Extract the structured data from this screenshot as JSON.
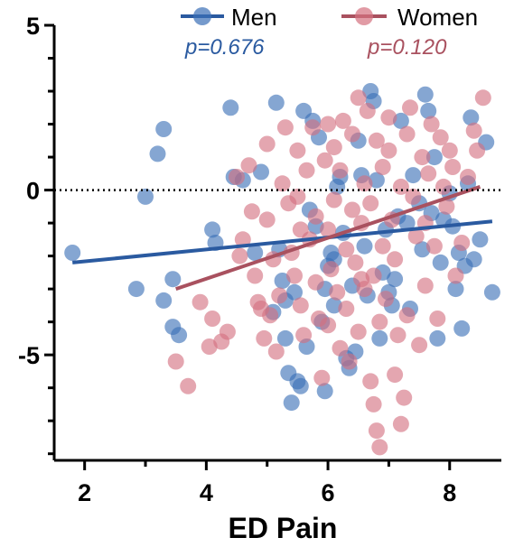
{
  "chart_data": {
    "type": "scatter",
    "title": "",
    "xlabel": "ED Pain",
    "ylabel": "",
    "xlim": [
      1.5,
      8.85
    ],
    "ylim": [
      -8.2,
      5.0
    ],
    "xticks": [
      2,
      4,
      6,
      8
    ],
    "xtick_labels": [
      "2",
      "4",
      "6",
      "8"
    ],
    "yticks": [
      5,
      0,
      -5
    ],
    "ytick_labels": [
      "5",
      "0",
      "-5"
    ],
    "reference_line": {
      "y": 0,
      "style": "dotted"
    },
    "legend_position": "top",
    "series": [
      {
        "name": "Men",
        "color": "#3a6fb6",
        "line_color": "#2a5aa0",
        "p_label": "p=0.676",
        "trend": {
          "x": [
            1.8,
            8.7
          ],
          "y": [
            -2.2,
            -0.95
          ]
        },
        "points": [
          [
            1.8,
            -1.9
          ],
          [
            2.85,
            -3.0
          ],
          [
            3.0,
            -0.2
          ],
          [
            3.2,
            1.1
          ],
          [
            3.3,
            1.85
          ],
          [
            3.3,
            -3.35
          ],
          [
            3.45,
            -2.7
          ],
          [
            3.45,
            -4.15
          ],
          [
            3.55,
            -4.4
          ],
          [
            4.1,
            -1.2
          ],
          [
            4.15,
            -1.6
          ],
          [
            4.4,
            2.5
          ],
          [
            4.45,
            0.4
          ],
          [
            4.6,
            0.3
          ],
          [
            4.9,
            0.55
          ],
          [
            4.8,
            -1.9
          ],
          [
            5.1,
            -3.7
          ],
          [
            5.15,
            2.65
          ],
          [
            5.2,
            -1.8
          ],
          [
            5.25,
            -2.75
          ],
          [
            5.3,
            -3.35
          ],
          [
            5.3,
            -4.5
          ],
          [
            5.35,
            -5.55
          ],
          [
            5.4,
            -6.45
          ],
          [
            5.45,
            -3.1
          ],
          [
            5.5,
            -5.8
          ],
          [
            5.55,
            -5.95
          ],
          [
            5.6,
            2.4
          ],
          [
            5.65,
            -4.75
          ],
          [
            5.7,
            -0.6
          ],
          [
            5.75,
            2.1
          ],
          [
            5.8,
            -1.1
          ],
          [
            5.85,
            1.6
          ],
          [
            5.9,
            -4.0
          ],
          [
            5.95,
            -3.0
          ],
          [
            5.95,
            -6.1
          ],
          [
            6.0,
            -2.3
          ],
          [
            6.05,
            -1.9
          ],
          [
            6.1,
            -3.5
          ],
          [
            6.1,
            -2.1
          ],
          [
            6.15,
            0.1
          ],
          [
            6.2,
            0.4
          ],
          [
            6.25,
            -1.3
          ],
          [
            6.3,
            -5.1
          ],
          [
            6.35,
            -5.4
          ],
          [
            6.4,
            -2.9
          ],
          [
            6.45,
            -4.9
          ],
          [
            6.5,
            1.5
          ],
          [
            6.55,
            0.45
          ],
          [
            6.6,
            -1.7
          ],
          [
            6.65,
            -3.2
          ],
          [
            6.7,
            3.0
          ],
          [
            6.75,
            2.7
          ],
          [
            6.8,
            0.3
          ],
          [
            6.85,
            -4.5
          ],
          [
            6.9,
            -2.5
          ],
          [
            6.95,
            -1.2
          ],
          [
            7.0,
            -3.1
          ],
          [
            7.05,
            -3.5
          ],
          [
            7.1,
            -2.7
          ],
          [
            7.15,
            -0.8
          ],
          [
            7.2,
            2.1
          ],
          [
            7.3,
            -1.0
          ],
          [
            7.35,
            -3.6
          ],
          [
            7.4,
            0.45
          ],
          [
            7.5,
            -0.4
          ],
          [
            7.55,
            -1.8
          ],
          [
            7.6,
            2.9
          ],
          [
            7.65,
            2.4
          ],
          [
            7.7,
            -0.7
          ],
          [
            7.75,
            1.0
          ],
          [
            7.8,
            -4.5
          ],
          [
            7.85,
            -2.2
          ],
          [
            7.9,
            -0.9
          ],
          [
            8.0,
            -0.1
          ],
          [
            8.05,
            -1.1
          ],
          [
            8.1,
            -3.0
          ],
          [
            8.15,
            -1.9
          ],
          [
            8.2,
            -4.2
          ],
          [
            8.25,
            -2.3
          ],
          [
            8.3,
            0.2
          ],
          [
            8.4,
            -2.1
          ],
          [
            8.5,
            -1.5
          ],
          [
            8.6,
            1.45
          ],
          [
            8.7,
            -3.1
          ],
          [
            8.35,
            2.2
          ]
        ]
      },
      {
        "name": "Women",
        "color": "#d4707f",
        "line_color": "#a9515f",
        "p_label": "p=0.120",
        "trend": {
          "x": [
            3.5,
            8.5
          ],
          "y": [
            -3.0,
            0.1
          ]
        },
        "points": [
          [
            3.5,
            -5.2
          ],
          [
            3.7,
            -5.95
          ],
          [
            3.9,
            -3.4
          ],
          [
            4.05,
            -4.75
          ],
          [
            4.1,
            -3.9
          ],
          [
            4.25,
            -4.6
          ],
          [
            4.35,
            -4.3
          ],
          [
            4.5,
            0.4
          ],
          [
            4.55,
            -2.0
          ],
          [
            4.6,
            -1.5
          ],
          [
            4.7,
            0.75
          ],
          [
            4.75,
            -0.65
          ],
          [
            4.8,
            -2.6
          ],
          [
            4.85,
            -3.4
          ],
          [
            4.9,
            -3.6
          ],
          [
            4.95,
            -4.5
          ],
          [
            5.0,
            -0.9
          ],
          [
            5.0,
            1.4
          ],
          [
            5.05,
            -3.8
          ],
          [
            5.1,
            -2.1
          ],
          [
            5.15,
            -4.9
          ],
          [
            5.2,
            -3.2
          ],
          [
            5.25,
            0.2
          ],
          [
            5.3,
            1.9
          ],
          [
            5.35,
            -0.4
          ],
          [
            5.4,
            -1.9
          ],
          [
            5.45,
            -2.6
          ],
          [
            5.5,
            -0.2
          ],
          [
            5.5,
            1.2
          ],
          [
            5.55,
            -3.5
          ],
          [
            5.6,
            -4.4
          ],
          [
            5.65,
            0.6
          ],
          [
            5.7,
            -1.5
          ],
          [
            5.75,
            1.9
          ],
          [
            5.8,
            -0.8
          ],
          [
            5.8,
            -2.8
          ],
          [
            5.85,
            -3.9
          ],
          [
            5.9,
            -5.7
          ],
          [
            5.95,
            0.9
          ],
          [
            6.0,
            -1.2
          ],
          [
            6.0,
            -4.1
          ],
          [
            6.05,
            -2.4
          ],
          [
            6.1,
            1.3
          ],
          [
            6.1,
            -0.3
          ],
          [
            6.15,
            -3.1
          ],
          [
            6.2,
            -4.8
          ],
          [
            6.2,
            0.6
          ],
          [
            6.25,
            2.1
          ],
          [
            6.3,
            -1.8
          ],
          [
            6.3,
            -3.6
          ],
          [
            6.35,
            -5.2
          ],
          [
            6.4,
            -0.6
          ],
          [
            6.4,
            1.7
          ],
          [
            6.45,
            -2.2
          ],
          [
            6.5,
            2.8
          ],
          [
            6.5,
            -4.3
          ],
          [
            6.55,
            -1.0
          ],
          [
            6.6,
            0.2
          ],
          [
            6.6,
            -3.0
          ],
          [
            6.65,
            2.4
          ],
          [
            6.7,
            -0.4
          ],
          [
            6.7,
            -5.8
          ],
          [
            6.75,
            -2.6
          ],
          [
            6.75,
            -6.5
          ],
          [
            6.8,
            1.5
          ],
          [
            6.8,
            -7.3
          ],
          [
            6.85,
            -4.0
          ],
          [
            6.85,
            -7.8
          ],
          [
            6.9,
            0.7
          ],
          [
            6.9,
            -1.7
          ],
          [
            6.95,
            -3.3
          ],
          [
            7.0,
            1.2
          ],
          [
            7.0,
            2.2
          ],
          [
            7.05,
            -0.9
          ],
          [
            7.1,
            -2.1
          ],
          [
            7.1,
            -5.6
          ],
          [
            7.15,
            -4.4
          ],
          [
            7.2,
            0.1
          ],
          [
            7.2,
            -7.1
          ],
          [
            7.25,
            -6.3
          ],
          [
            7.3,
            1.7
          ],
          [
            7.3,
            -3.8
          ],
          [
            7.35,
            2.5
          ],
          [
            7.4,
            -0.2
          ],
          [
            7.45,
            -1.4
          ],
          [
            7.5,
            -4.7
          ],
          [
            7.55,
            1.0
          ],
          [
            7.6,
            -2.9
          ],
          [
            7.65,
            0.5
          ],
          [
            7.7,
            2.0
          ],
          [
            7.75,
            -1.7
          ],
          [
            7.8,
            -3.9
          ],
          [
            7.85,
            1.6
          ],
          [
            7.9,
            0.1
          ],
          [
            7.95,
            -0.5
          ],
          [
            8.0,
            1.2
          ],
          [
            8.05,
            0.7
          ],
          [
            8.1,
            -2.6
          ],
          [
            8.2,
            -1.6
          ],
          [
            8.3,
            0.4
          ],
          [
            8.4,
            1.8
          ],
          [
            8.45,
            1.2
          ],
          [
            8.55,
            2.8
          ],
          [
            7.6,
            -1.0
          ],
          [
            6.55,
            -2.7
          ],
          [
            6.0,
            2.0
          ],
          [
            5.55,
            -1.2
          ]
        ]
      }
    ]
  }
}
